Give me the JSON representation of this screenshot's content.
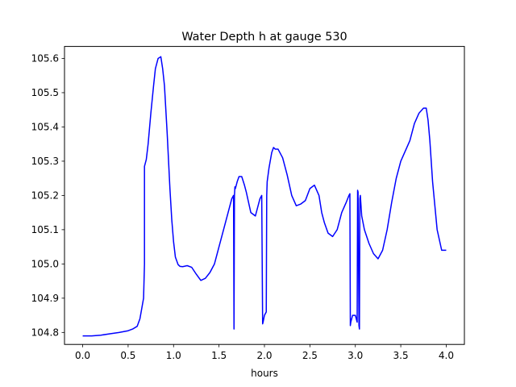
{
  "chart_data": {
    "type": "line",
    "title": "Water Depth h at gauge 530",
    "xlabel": "hours",
    "ylabel": "",
    "xlim": [
      -0.2,
      4.2
    ],
    "ylim": [
      104.765,
      105.635
    ],
    "xticks": [
      0.0,
      0.5,
      1.0,
      1.5,
      2.0,
      2.5,
      3.0,
      3.5,
      4.0
    ],
    "xtick_labels": [
      "0.0",
      "0.5",
      "1.0",
      "1.5",
      "2.0",
      "2.5",
      "3.0",
      "3.5",
      "4.0"
    ],
    "yticks": [
      104.8,
      104.9,
      105.0,
      105.1,
      105.2,
      105.3,
      105.4,
      105.5,
      105.6
    ],
    "ytick_labels": [
      "104.8",
      "104.9",
      "105.0",
      "105.1",
      "105.2",
      "105.3",
      "105.4",
      "105.5",
      "105.6"
    ],
    "grid": false,
    "legend": "none",
    "series": [
      {
        "color": "#0000ff",
        "x": [
          0.0,
          0.1,
          0.2,
          0.3,
          0.4,
          0.5,
          0.55,
          0.6,
          0.63,
          0.65,
          0.67,
          0.68,
          0.68,
          0.7,
          0.72,
          0.75,
          0.78,
          0.8,
          0.83,
          0.86,
          0.88,
          0.9,
          0.93,
          0.96,
          0.98,
          1.0,
          1.02,
          1.05,
          1.07,
          1.1,
          1.15,
          1.2,
          1.25,
          1.3,
          1.35,
          1.4,
          1.45,
          1.5,
          1.55,
          1.6,
          1.64,
          1.66,
          1.665,
          1.67,
          1.675,
          1.68,
          1.7,
          1.72,
          1.75,
          1.78,
          1.8,
          1.85,
          1.9,
          1.93,
          1.95,
          1.97,
          1.98,
          1.985,
          2.0,
          2.02,
          2.025,
          2.03,
          2.05,
          2.08,
          2.1,
          2.12,
          2.15,
          2.17,
          2.2,
          2.25,
          2.3,
          2.35,
          2.4,
          2.45,
          2.5,
          2.55,
          2.6,
          2.63,
          2.66,
          2.7,
          2.75,
          2.8,
          2.85,
          2.9,
          2.93,
          2.94,
          2.945,
          2.95,
          2.97,
          3.0,
          3.02,
          3.025,
          3.03,
          3.04,
          3.045,
          3.05,
          3.055,
          3.06,
          3.065,
          3.07,
          3.1,
          3.15,
          3.2,
          3.25,
          3.3,
          3.35,
          3.4,
          3.45,
          3.5,
          3.55,
          3.6,
          3.65,
          3.7,
          3.75,
          3.78,
          3.8,
          3.82,
          3.85,
          3.9,
          3.95,
          4.0
        ],
        "y": [
          104.79,
          104.79,
          104.792,
          104.796,
          104.8,
          104.805,
          104.81,
          104.818,
          104.84,
          104.87,
          104.9,
          105.0,
          105.285,
          105.305,
          105.35,
          105.44,
          105.52,
          105.57,
          105.6,
          105.605,
          105.57,
          105.52,
          105.38,
          105.22,
          105.13,
          105.065,
          105.02,
          104.998,
          104.993,
          104.992,
          104.995,
          104.99,
          104.97,
          104.952,
          104.958,
          104.975,
          105.0,
          105.05,
          105.1,
          105.15,
          105.19,
          105.2,
          104.81,
          105.2,
          105.225,
          105.22,
          105.24,
          105.255,
          105.255,
          105.23,
          105.21,
          105.15,
          105.14,
          105.17,
          105.19,
          105.2,
          104.825,
          104.83,
          104.85,
          104.86,
          105.2,
          105.24,
          105.28,
          105.325,
          105.34,
          105.335,
          105.335,
          105.325,
          105.31,
          105.26,
          105.2,
          105.17,
          105.175,
          105.185,
          105.22,
          105.23,
          105.2,
          105.15,
          105.12,
          105.09,
          105.08,
          105.1,
          105.15,
          105.18,
          105.2,
          105.205,
          104.82,
          104.83,
          104.85,
          104.85,
          104.83,
          105.215,
          105.21,
          104.82,
          104.81,
          105.19,
          105.2,
          105.18,
          105.16,
          105.14,
          105.1,
          105.06,
          105.03,
          105.015,
          105.04,
          105.1,
          105.18,
          105.25,
          105.3,
          105.33,
          105.36,
          105.41,
          105.44,
          105.455,
          105.455,
          105.42,
          105.36,
          105.24,
          105.1,
          105.04,
          105.04
        ]
      }
    ]
  }
}
